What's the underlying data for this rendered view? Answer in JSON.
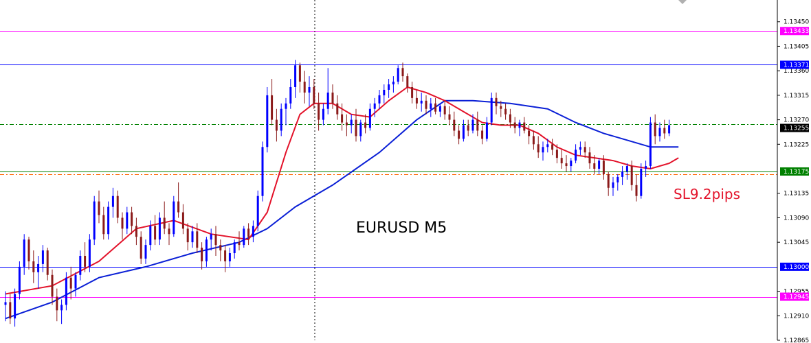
{
  "chart_data": {
    "type": "candlestick",
    "title": "EURUSD M5",
    "annotation": "SL9.2pips",
    "ylim": [
      1.12865,
      1.1349
    ],
    "y_ticks": [
      "1.13450",
      "1.13405",
      "1.13360",
      "1.13315",
      "1.13270",
      "1.13225",
      "1.13135",
      "1.13090",
      "1.13045",
      "1.12955",
      "1.12910",
      "1.12865"
    ],
    "levels": [
      {
        "value": 1.13433,
        "label": "1.13433",
        "color": "#ff00ff",
        "style": "solid",
        "label_box": true
      },
      {
        "value": 1.13371,
        "label": "1.13371",
        "color": "#0000ff",
        "style": "solid",
        "label_box": true
      },
      {
        "value": 1.13255,
        "label": "1.13255",
        "color": "#000000",
        "style": "none",
        "label_box": true
      },
      {
        "value": 1.13175,
        "label": "1.13175",
        "color": "#008000",
        "style": "solid",
        "label_box": true
      },
      {
        "value": 1.13,
        "label": "1.13000",
        "color": "#0000ff",
        "style": "solid",
        "label_box": true
      },
      {
        "value": 1.12945,
        "label": "1.12945",
        "color": "#ff00ff",
        "style": "solid",
        "label_box": true
      },
      {
        "value": 1.13262,
        "label": "",
        "color": "#008000",
        "style": "dashdot",
        "label_box": false
      },
      {
        "value": 1.1317,
        "label": "",
        "color": "#ff6600",
        "style": "dashdot",
        "label_box": false
      }
    ],
    "colors": {
      "bull": "#0000ff",
      "bear": "#8b1a1a",
      "ma_fast": "#e3122a",
      "ma_slow": "#0a1fd6",
      "crosshair": "#000000"
    },
    "candles": [
      [
        1.1293,
        1.12955,
        1.129,
        1.12935
      ],
      [
        1.12935,
        1.1295,
        1.12895,
        1.12905
      ],
      [
        1.12905,
        1.1296,
        1.1289,
        1.1295
      ],
      [
        1.1295,
        1.1301,
        1.1294,
        1.13
      ],
      [
        1.13,
        1.1306,
        1.12985,
        1.1305
      ],
      [
        1.1305,
        1.13055,
        1.12995,
        1.1301
      ],
      [
        1.1301,
        1.1303,
        1.1297,
        1.1299
      ],
      [
        1.1299,
        1.1302,
        1.1296,
        1.13005
      ],
      [
        1.13005,
        1.1304,
        1.1299,
        1.1303
      ],
      [
        1.1303,
        1.13035,
        1.12975,
        1.12985
      ],
      [
        1.12985,
        1.12995,
        1.1293,
        1.12945
      ],
      [
        1.12945,
        1.1296,
        1.129,
        1.1292
      ],
      [
        1.1292,
        1.1294,
        1.12895,
        1.1293
      ],
      [
        1.1293,
        1.1299,
        1.1292,
        1.1298
      ],
      [
        1.1298,
        1.13,
        1.1294,
        1.1296
      ],
      [
        1.1296,
        1.1299,
        1.12945,
        1.12985
      ],
      [
        1.12985,
        1.1303,
        1.12975,
        1.1302
      ],
      [
        1.1302,
        1.13045,
        1.1299,
        1.13
      ],
      [
        1.13,
        1.1306,
        1.1299,
        1.1305
      ],
      [
        1.1305,
        1.1313,
        1.1304,
        1.1312
      ],
      [
        1.1312,
        1.1314,
        1.1308,
        1.13095
      ],
      [
        1.13095,
        1.1311,
        1.1305,
        1.1306
      ],
      [
        1.1306,
        1.1312,
        1.1305,
        1.1311
      ],
      [
        1.1311,
        1.13145,
        1.1309,
        1.1313
      ],
      [
        1.1313,
        1.1314,
        1.1308,
        1.1309
      ],
      [
        1.1309,
        1.131,
        1.1305,
        1.1307
      ],
      [
        1.1307,
        1.1311,
        1.1306,
        1.131
      ],
      [
        1.131,
        1.1311,
        1.1306,
        1.13075
      ],
      [
        1.13075,
        1.1309,
        1.1304,
        1.13055
      ],
      [
        1.13055,
        1.13065,
        1.13005,
        1.13015
      ],
      [
        1.13015,
        1.1305,
        1.13005,
        1.1304
      ],
      [
        1.1304,
        1.13085,
        1.1303,
        1.13075
      ],
      [
        1.13075,
        1.13095,
        1.1304,
        1.1305
      ],
      [
        1.1305,
        1.131,
        1.1304,
        1.1309
      ],
      [
        1.1309,
        1.1312,
        1.1306,
        1.1307
      ],
      [
        1.1307,
        1.1308,
        1.1304,
        1.1306
      ],
      [
        1.1306,
        1.1313,
        1.13055,
        1.1312
      ],
      [
        1.1312,
        1.13155,
        1.1309,
        1.131
      ],
      [
        1.131,
        1.13115,
        1.1306,
        1.1307
      ],
      [
        1.1307,
        1.1308,
        1.1303,
        1.13045
      ],
      [
        1.13045,
        1.13075,
        1.13035,
        1.13065
      ],
      [
        1.13065,
        1.1308,
        1.13025,
        1.13035
      ],
      [
        1.13035,
        1.13045,
        1.12995,
        1.1301
      ],
      [
        1.1301,
        1.13055,
        1.13,
        1.1305
      ],
      [
        1.1305,
        1.1307,
        1.1303,
        1.1306
      ],
      [
        1.1306,
        1.13075,
        1.1302,
        1.1304
      ],
      [
        1.1304,
        1.1305,
        1.1301,
        1.1303
      ],
      [
        1.1303,
        1.1304,
        1.1299,
        1.1301
      ],
      [
        1.1301,
        1.13035,
        1.13,
        1.13025
      ],
      [
        1.13025,
        1.1305,
        1.13015,
        1.13045
      ],
      [
        1.13045,
        1.13065,
        1.1303,
        1.1304
      ],
      [
        1.1304,
        1.13075,
        1.13035,
        1.1307
      ],
      [
        1.1307,
        1.1308,
        1.1304,
        1.13055
      ],
      [
        1.13055,
        1.13085,
        1.13045,
        1.13075
      ],
      [
        1.13075,
        1.1314,
        1.13065,
        1.1313
      ],
      [
        1.1313,
        1.1323,
        1.1312,
        1.1322
      ],
      [
        1.1322,
        1.1333,
        1.1321,
        1.13315
      ],
      [
        1.13315,
        1.13345,
        1.1326,
        1.1327
      ],
      [
        1.1327,
        1.1329,
        1.1323,
        1.1325
      ],
      [
        1.1325,
        1.133,
        1.1324,
        1.1329
      ],
      [
        1.1329,
        1.1331,
        1.1326,
        1.133
      ],
      [
        1.133,
        1.13345,
        1.1329,
        1.1333
      ],
      [
        1.1333,
        1.1338,
        1.1331,
        1.1337
      ],
      [
        1.1337,
        1.13375,
        1.1332,
        1.1334
      ],
      [
        1.1334,
        1.1336,
        1.133,
        1.1332
      ],
      [
        1.1332,
        1.1335,
        1.13295,
        1.1333
      ],
      [
        1.1333,
        1.13345,
        1.1329,
        1.133
      ],
      [
        1.133,
        1.1332,
        1.1325,
        1.1327
      ],
      [
        1.1327,
        1.133,
        1.1326,
        1.1329
      ],
      [
        1.1329,
        1.13365,
        1.1328,
        1.1332
      ],
      [
        1.1332,
        1.13335,
        1.1329,
        1.133
      ],
      [
        1.133,
        1.13315,
        1.1327,
        1.1328
      ],
      [
        1.1328,
        1.133,
        1.1325,
        1.13265
      ],
      [
        1.13265,
        1.1328,
        1.1324,
        1.1326
      ],
      [
        1.1326,
        1.1328,
        1.13245,
        1.1327
      ],
      [
        1.1327,
        1.1329,
        1.1323,
        1.1324
      ],
      [
        1.1324,
        1.1327,
        1.1323,
        1.13265
      ],
      [
        1.13265,
        1.1328,
        1.13245,
        1.13255
      ],
      [
        1.13255,
        1.133,
        1.1325,
        1.1329
      ],
      [
        1.1329,
        1.1331,
        1.13275,
        1.133
      ],
      [
        1.133,
        1.13325,
        1.1329,
        1.13315
      ],
      [
        1.13315,
        1.13335,
        1.133,
        1.13325
      ],
      [
        1.13325,
        1.13345,
        1.1331,
        1.13335
      ],
      [
        1.13335,
        1.1335,
        1.1332,
        1.1334
      ],
      [
        1.1334,
        1.1337,
        1.13335,
        1.13365
      ],
      [
        1.13365,
        1.13375,
        1.1334,
        1.1335
      ],
      [
        1.1335,
        1.13355,
        1.1332,
        1.1333
      ],
      [
        1.1333,
        1.1334,
        1.133,
        1.1331
      ],
      [
        1.1331,
        1.13325,
        1.1329,
        1.133
      ],
      [
        1.133,
        1.1332,
        1.13285,
        1.13305
      ],
      [
        1.13305,
        1.13315,
        1.1328,
        1.1329
      ],
      [
        1.1329,
        1.1331,
        1.13275,
        1.133
      ],
      [
        1.133,
        1.1331,
        1.1328,
        1.13285
      ],
      [
        1.13285,
        1.133,
        1.13275,
        1.13295
      ],
      [
        1.13295,
        1.13305,
        1.1327,
        1.1328
      ],
      [
        1.1328,
        1.13295,
        1.1326,
        1.1327
      ],
      [
        1.1327,
        1.13285,
        1.1324,
        1.1325
      ],
      [
        1.1325,
        1.1326,
        1.13225,
        1.13235
      ],
      [
        1.13235,
        1.1327,
        1.1323,
        1.1326
      ],
      [
        1.1326,
        1.1327,
        1.1324,
        1.1325
      ],
      [
        1.1325,
        1.1328,
        1.13245,
        1.1327
      ],
      [
        1.1327,
        1.13285,
        1.1324,
        1.1325
      ],
      [
        1.1325,
        1.1326,
        1.13225,
        1.13235
      ],
      [
        1.13235,
        1.13275,
        1.1323,
        1.13265
      ],
      [
        1.13265,
        1.1332,
        1.1326,
        1.1331
      ],
      [
        1.1331,
        1.1332,
        1.1328,
        1.13295
      ],
      [
        1.13295,
        1.13305,
        1.13275,
        1.1329
      ],
      [
        1.1329,
        1.133,
        1.1327,
        1.1328
      ],
      [
        1.1328,
        1.1329,
        1.13255,
        1.13265
      ],
      [
        1.13265,
        1.13275,
        1.13245,
        1.13255
      ],
      [
        1.13255,
        1.1327,
        1.1324,
        1.13265
      ],
      [
        1.13265,
        1.13275,
        1.13245,
        1.1325
      ],
      [
        1.1325,
        1.1326,
        1.13225,
        1.1324
      ],
      [
        1.1324,
        1.1325,
        1.13215,
        1.13225
      ],
      [
        1.13225,
        1.1324,
        1.132,
        1.1321
      ],
      [
        1.1321,
        1.1323,
        1.13195,
        1.1322
      ],
      [
        1.1322,
        1.13235,
        1.1321,
        1.13225
      ],
      [
        1.13225,
        1.13235,
        1.13205,
        1.13215
      ],
      [
        1.13215,
        1.13225,
        1.1319,
        1.132
      ],
      [
        1.132,
        1.13215,
        1.1318,
        1.1319
      ],
      [
        1.1319,
        1.13205,
        1.13175,
        1.13185
      ],
      [
        1.13185,
        1.132,
        1.13175,
        1.13195
      ],
      [
        1.13195,
        1.13225,
        1.1319,
        1.13215
      ],
      [
        1.13215,
        1.1323,
        1.13205,
        1.1322
      ],
      [
        1.1322,
        1.1323,
        1.132,
        1.1321
      ],
      [
        1.1321,
        1.1322,
        1.1318,
        1.1319
      ],
      [
        1.1319,
        1.13205,
        1.1317,
        1.1318
      ],
      [
        1.1318,
        1.132,
        1.1317,
        1.13195
      ],
      [
        1.13195,
        1.13205,
        1.1316,
        1.1317
      ],
      [
        1.1317,
        1.13175,
        1.1313,
        1.13145
      ],
      [
        1.13145,
        1.13165,
        1.1313,
        1.13155
      ],
      [
        1.13155,
        1.1317,
        1.1314,
        1.13165
      ],
      [
        1.13165,
        1.13185,
        1.1315,
        1.13175
      ],
      [
        1.13175,
        1.1319,
        1.1316,
        1.13185
      ],
      [
        1.13185,
        1.13195,
        1.1314,
        1.1315
      ],
      [
        1.1315,
        1.1317,
        1.1312,
        1.1313
      ],
      [
        1.1313,
        1.1319,
        1.13125,
        1.1318
      ],
      [
        1.1318,
        1.13195,
        1.13165,
        1.13185
      ],
      [
        1.13185,
        1.13275,
        1.1318,
        1.13265
      ],
      [
        1.13265,
        1.1328,
        1.13225,
        1.1324
      ],
      [
        1.1324,
        1.13265,
        1.1323,
        1.13255
      ],
      [
        1.13255,
        1.1327,
        1.13235,
        1.13245
      ],
      [
        1.13245,
        1.1327,
        1.1324,
        1.1326
      ]
    ],
    "ma_fast": [
      [
        0,
        1.1295
      ],
      [
        10,
        1.12965
      ],
      [
        20,
        1.1301
      ],
      [
        28,
        1.1307
      ],
      [
        36,
        1.13085
      ],
      [
        44,
        1.1306
      ],
      [
        52,
        1.1305
      ],
      [
        56,
        1.131
      ],
      [
        60,
        1.1321
      ],
      [
        63,
        1.1328
      ],
      [
        66,
        1.133
      ],
      [
        70,
        1.133
      ],
      [
        74,
        1.1328
      ],
      [
        78,
        1.13275
      ],
      [
        82,
        1.13305
      ],
      [
        86,
        1.1333
      ],
      [
        90,
        1.1332
      ],
      [
        94,
        1.13305
      ],
      [
        98,
        1.13285
      ],
      [
        102,
        1.13265
      ],
      [
        106,
        1.1326
      ],
      [
        110,
        1.1326
      ],
      [
        114,
        1.13245
      ],
      [
        118,
        1.1322
      ],
      [
        122,
        1.13205
      ],
      [
        126,
        1.132
      ],
      [
        130,
        1.13195
      ],
      [
        134,
        1.13185
      ],
      [
        138,
        1.1318
      ],
      [
        142,
        1.1319
      ],
      [
        144,
        1.132
      ]
    ],
    "ma_slow": [
      [
        0,
        1.12905
      ],
      [
        10,
        1.12935
      ],
      [
        20,
        1.1298
      ],
      [
        30,
        1.13
      ],
      [
        40,
        1.13025
      ],
      [
        50,
        1.13045
      ],
      [
        56,
        1.1307
      ],
      [
        62,
        1.1311
      ],
      [
        70,
        1.1315
      ],
      [
        80,
        1.1321
      ],
      [
        88,
        1.1327
      ],
      [
        94,
        1.13305
      ],
      [
        100,
        1.13305
      ],
      [
        108,
        1.133
      ],
      [
        116,
        1.1329
      ],
      [
        122,
        1.13265
      ],
      [
        128,
        1.13245
      ],
      [
        134,
        1.1323
      ],
      [
        138,
        1.1322
      ],
      [
        141,
        1.1322
      ],
      [
        144,
        1.1322
      ]
    ]
  }
}
